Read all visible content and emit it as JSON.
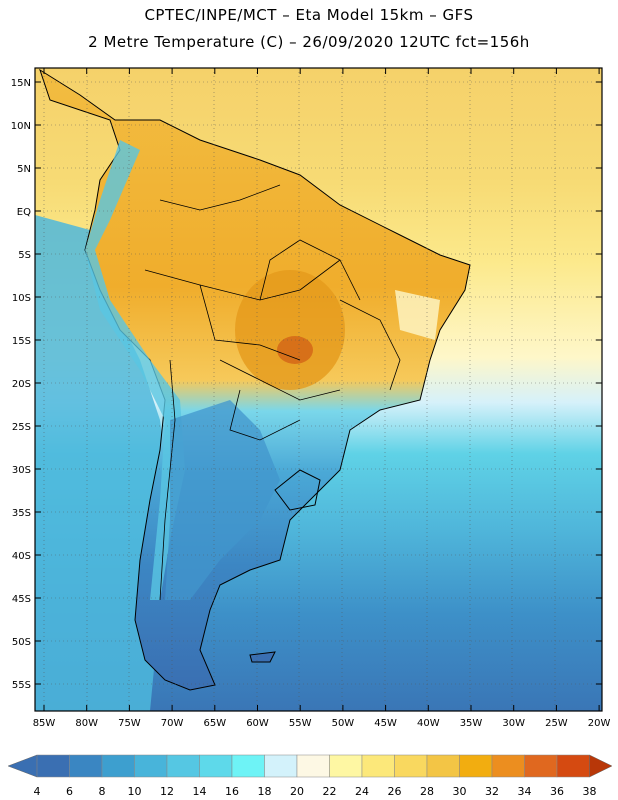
{
  "header": {
    "line1": "CPTEC/INPE/MCT –  Eta Model 15km – GFS",
    "line2": "2 Metre Temperature (C) – 26/09/2020 12UTC fct=156h"
  },
  "map": {
    "lat_labels": [
      "15N",
      "10N",
      "5N",
      "EQ",
      "5S",
      "10S",
      "15S",
      "20S",
      "25S",
      "30S",
      "35S",
      "40S",
      "45S",
      "50S",
      "55S"
    ],
    "lon_labels": [
      "85W",
      "80W",
      "75W",
      "70W",
      "65W",
      "60W",
      "55W",
      "50W",
      "45W",
      "40W",
      "35W",
      "30W",
      "25W",
      "20W"
    ]
  },
  "colorbar": {
    "labels": [
      "4",
      "6",
      "8",
      "10",
      "12",
      "14",
      "16",
      "18",
      "20",
      "22",
      "24",
      "26",
      "28",
      "30",
      "32",
      "34",
      "36",
      "38"
    ],
    "colors": [
      "#3a6fb2",
      "#3a86c2",
      "#3d9fcf",
      "#48b4da",
      "#55c7e3",
      "#5ed9ea",
      "#6ef3f6",
      "#d3f2fb",
      "#fdf8e4",
      "#fef7a3",
      "#fce87a",
      "#f9d85f",
      "#f3c545",
      "#f2ad10",
      "#ec8e1f",
      "#e0681f",
      "#d54a11",
      "#b83708"
    ]
  }
}
